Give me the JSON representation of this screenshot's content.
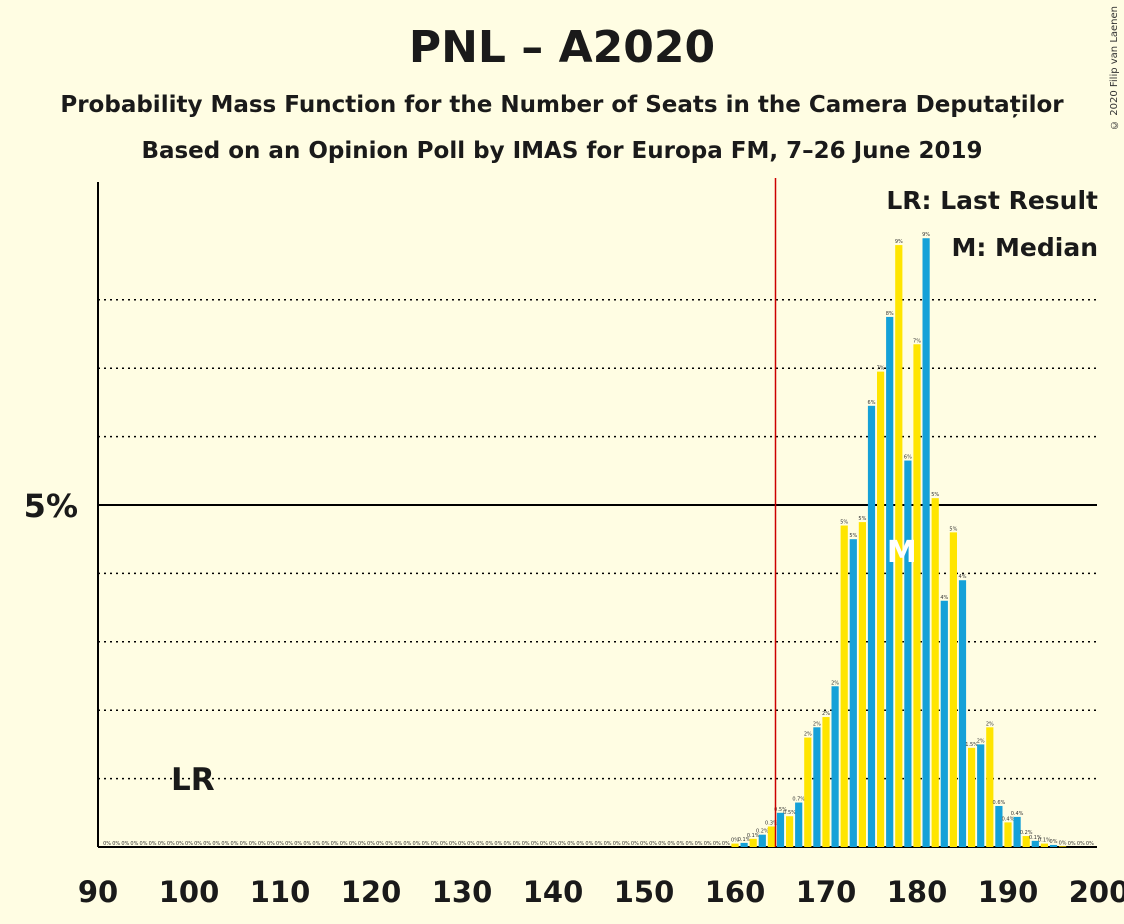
{
  "title": "PNL – A2020",
  "subtitle_1": "Probability Mass Function for the Number of Seats in the Camera Deputaților",
  "subtitle_2": "Based on an Opinion Poll by IMAS for Europa FM, 7–26 June 2019",
  "copyright": "© 2020 Filip van Laenen",
  "legend": {
    "last_result": "LR: Last Result",
    "median": "M: Median"
  },
  "colors": {
    "background": "#FFFDE3",
    "blue": "#15A1D8",
    "yellow": "#FFE500",
    "last_result_line": "#CC0000",
    "text": "#1a1a1a"
  },
  "chart_data": {
    "type": "bar",
    "x_range": [
      90,
      200
    ],
    "x_ticks": [
      90,
      100,
      110,
      120,
      130,
      140,
      150,
      160,
      170,
      180,
      190,
      200
    ],
    "y_range": [
      0,
      9.5
    ],
    "y_tick_label": "5%",
    "y_tick_value": 5,
    "gridlines": [
      1,
      2,
      3,
      4,
      6,
      7,
      8
    ],
    "last_result_seat": 165,
    "last_result_label": "LR",
    "lr_label_seat": 100,
    "median_seat": 178,
    "median_label": "M",
    "seats": [
      160,
      161,
      162,
      163,
      164,
      165,
      166,
      167,
      168,
      169,
      170,
      171,
      172,
      173,
      174,
      175,
      176,
      177,
      178,
      179,
      180,
      181,
      182,
      183,
      184,
      185,
      186,
      187,
      188,
      189,
      190,
      191,
      192,
      193,
      194,
      195,
      196
    ],
    "values": [
      0.05,
      0.06,
      0.12,
      0.18,
      0.3,
      0.5,
      0.45,
      0.65,
      1.6,
      1.75,
      1.9,
      2.35,
      4.7,
      4.5,
      4.75,
      6.45,
      6.95,
      7.75,
      8.8,
      5.65,
      7.35,
      8.9,
      5.1,
      3.6,
      4.6,
      3.9,
      1.45,
      1.5,
      1.75,
      0.6,
      0.36,
      0.44,
      0.16,
      0.09,
      0.05,
      0.03,
      0.01
    ],
    "bar_labels": [
      "0%",
      "0.1%",
      "0.1%",
      "0.2%",
      "0.3%",
      "0.5%",
      "0.5%",
      "0.7%",
      "2%",
      "2%",
      "2%",
      "2%",
      "5%",
      "5%",
      "5%",
      "6%",
      "7%",
      "8%",
      "9%",
      "6%",
      "7%",
      "9%",
      "5%",
      "4%",
      "5%",
      "4%",
      "1.5%",
      "2%",
      "2%",
      "0.6%",
      "0.4%",
      "0.4%",
      "0.2%",
      "0.1%",
      "0.1%",
      "0%",
      "0%"
    ],
    "zero_label": "0%"
  }
}
